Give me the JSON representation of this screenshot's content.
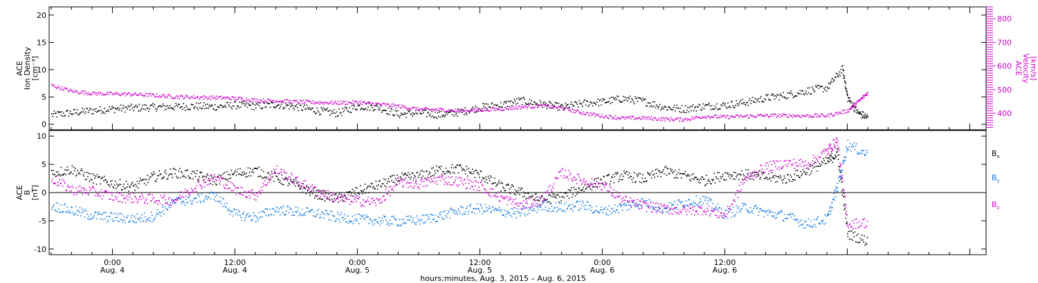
{
  "chart_data": [
    {
      "type": "scatter",
      "panel": "top",
      "ylabel_left": [
        "ACE",
        "Ion Density",
        "[cm⁻³]"
      ],
      "ylabel_right": [
        "ACE",
        "Velocity",
        "[km/s]"
      ],
      "yticks_left": [
        "0",
        "5",
        "10",
        "15",
        "20"
      ],
      "yticks_right": [
        "400",
        "500",
        "600",
        "700",
        "800"
      ],
      "ylim_left": [
        -1,
        21.5
      ],
      "ylim_right": [
        330,
        850
      ],
      "x_hours_range": [
        -6.2,
        85.6
      ],
      "series": [
        {
          "name": "density",
          "color": "#000000",
          "points": [
            [
              -6,
              1.8
            ],
            [
              -4,
              2.2
            ],
            [
              -2,
              2.6
            ],
            [
              0,
              2.9
            ],
            [
              2,
              3.1
            ],
            [
              4,
              3.2
            ],
            [
              6,
              3.3
            ],
            [
              8,
              3.4
            ],
            [
              10,
              3.3
            ],
            [
              12,
              3.6
            ],
            [
              14,
              3.4
            ],
            [
              16,
              3.7
            ],
            [
              18,
              3.3
            ],
            [
              20,
              2.6
            ],
            [
              22,
              2.1
            ],
            [
              24,
              3.4
            ],
            [
              26,
              3.2
            ],
            [
              28,
              1.9
            ],
            [
              30,
              2.2
            ],
            [
              32,
              1.8
            ],
            [
              34,
              2.3
            ],
            [
              36,
              3.2
            ],
            [
              38,
              3.6
            ],
            [
              40,
              4.4
            ],
            [
              42,
              3.8
            ],
            [
              44,
              3.2
            ],
            [
              46,
              3.9
            ],
            [
              48,
              4.2
            ],
            [
              50,
              4.8
            ],
            [
              52,
              4.3
            ],
            [
              54,
              3.2
            ],
            [
              56,
              2.9
            ],
            [
              58,
              3.4
            ],
            [
              60,
              3.6
            ],
            [
              62,
              4.1
            ],
            [
              64,
              4.9
            ],
            [
              66,
              5.4
            ],
            [
              68,
              6.2
            ],
            [
              70,
              6.8
            ],
            [
              71.5,
              10.2
            ],
            [
              72,
              4.9
            ],
            [
              73,
              2.2
            ],
            [
              74,
              1.3
            ]
          ]
        },
        {
          "name": "velocity",
          "color": "#cc00cc",
          "points": [
            [
              -6,
              520
            ],
            [
              -4,
              495
            ],
            [
              -2,
              486
            ],
            [
              0,
              484
            ],
            [
              2,
              482
            ],
            [
              4,
              478
            ],
            [
              6,
              472
            ],
            [
              8,
              470
            ],
            [
              10,
              468
            ],
            [
              12,
              465
            ],
            [
              14,
              457
            ],
            [
              16,
              455
            ],
            [
              18,
              450
            ],
            [
              20,
              448
            ],
            [
              22,
              446
            ],
            [
              24,
              448
            ],
            [
              26,
              440
            ],
            [
              28,
              432
            ],
            [
              30,
              418
            ],
            [
              32,
              417
            ],
            [
              34,
              412
            ],
            [
              36,
              416
            ],
            [
              38,
              420
            ],
            [
              40,
              428
            ],
            [
              42,
              434
            ],
            [
              44,
              424
            ],
            [
              46,
              404
            ],
            [
              48,
              390
            ],
            [
              50,
              381
            ],
            [
              52,
              382
            ],
            [
              54,
              377
            ],
            [
              56,
              376
            ],
            [
              58,
              389
            ],
            [
              60,
              386
            ],
            [
              62,
              389
            ],
            [
              64,
              392
            ],
            [
              66,
              392
            ],
            [
              68,
              391
            ],
            [
              70,
              392
            ],
            [
              72,
              412
            ],
            [
              73,
              450
            ],
            [
              74,
              490
            ]
          ]
        }
      ]
    },
    {
      "type": "scatter",
      "panel": "bottom",
      "ylabel_left": [
        "ACE",
        "B",
        "[nT]"
      ],
      "yticks_left": [
        "-10",
        "-5",
        "0",
        "5",
        "10"
      ],
      "ylim_left": [
        -11,
        11
      ],
      "x_hours_range": [
        -6.2,
        85.6
      ],
      "legend": [
        "B",
        "B",
        "B"
      ],
      "legend_subscripts": [
        "x",
        "y",
        "z"
      ],
      "series": [
        {
          "name": "Bx",
          "color": "#000000",
          "points": [
            [
              -6,
              3.5
            ],
            [
              -4,
              4.2
            ],
            [
              -2,
              2.6
            ],
            [
              0,
              1.7
            ],
            [
              2,
              1.1
            ],
            [
              4,
              2.9
            ],
            [
              6,
              3.6
            ],
            [
              8,
              3.2
            ],
            [
              10,
              2.2
            ],
            [
              12,
              3.5
            ],
            [
              14,
              3.9
            ],
            [
              16,
              2.7
            ],
            [
              18,
              1.4
            ],
            [
              20,
              -0.2
            ],
            [
              22,
              -1.0
            ],
            [
              24,
              0.3
            ],
            [
              26,
              1.4
            ],
            [
              28,
              2.6
            ],
            [
              30,
              3.0
            ],
            [
              32,
              4.1
            ],
            [
              34,
              4.3
            ],
            [
              36,
              3.2
            ],
            [
              38,
              1.2
            ],
            [
              40,
              0.1
            ],
            [
              42,
              -1.3
            ],
            [
              44,
              -0.6
            ],
            [
              46,
              0.8
            ],
            [
              48,
              2.2
            ],
            [
              50,
              3.1
            ],
            [
              52,
              2.5
            ],
            [
              54,
              3.9
            ],
            [
              56,
              3.1
            ],
            [
              58,
              2.2
            ],
            [
              60,
              3.2
            ],
            [
              62,
              3.3
            ],
            [
              64,
              2.8
            ],
            [
              66,
              2.5
            ],
            [
              68,
              3.9
            ],
            [
              70,
              5.6
            ],
            [
              71,
              7.1
            ],
            [
              72,
              -7.2
            ],
            [
              74,
              -8.6
            ]
          ]
        },
        {
          "name": "By",
          "color": "#1177dd",
          "points": [
            [
              -6,
              -2.2
            ],
            [
              -4,
              -3.1
            ],
            [
              -2,
              -4.0
            ],
            [
              0,
              -4.3
            ],
            [
              2,
              -4.6
            ],
            [
              4,
              -4.1
            ],
            [
              6,
              -1.6
            ],
            [
              8,
              -1.1
            ],
            [
              10,
              -0.4
            ],
            [
              12,
              -3.8
            ],
            [
              14,
              -4.3
            ],
            [
              16,
              -2.9
            ],
            [
              18,
              -3.3
            ],
            [
              20,
              -3.6
            ],
            [
              22,
              -4.3
            ],
            [
              24,
              -4.6
            ],
            [
              26,
              -4.9
            ],
            [
              28,
              -5.0
            ],
            [
              30,
              -4.8
            ],
            [
              32,
              -4.1
            ],
            [
              34,
              -3.1
            ],
            [
              36,
              -2.7
            ],
            [
              38,
              -3.3
            ],
            [
              40,
              -3.6
            ],
            [
              42,
              -2.3
            ],
            [
              44,
              -2.6
            ],
            [
              46,
              -2.1
            ],
            [
              48,
              -3.3
            ],
            [
              50,
              -2.4
            ],
            [
              52,
              -1.6
            ],
            [
              54,
              -2.8
            ],
            [
              56,
              -1.6
            ],
            [
              58,
              -1.2
            ],
            [
              60,
              -3.8
            ],
            [
              62,
              -2.5
            ],
            [
              64,
              -3.5
            ],
            [
              66,
              -4.1
            ],
            [
              68,
              -5.5
            ],
            [
              70,
              -4.6
            ],
            [
              71,
              1.2
            ],
            [
              72,
              8.6
            ],
            [
              74,
              6.8
            ]
          ]
        },
        {
          "name": "Bz",
          "color": "#cc00cc",
          "points": [
            [
              -6,
              2.6
            ],
            [
              -4,
              0.6
            ],
            [
              -2,
              0.3
            ],
            [
              0,
              -0.6
            ],
            [
              2,
              -0.9
            ],
            [
              4,
              -1.1
            ],
            [
              6,
              -1.3
            ],
            [
              8,
              1.1
            ],
            [
              10,
              2.8
            ],
            [
              12,
              0.6
            ],
            [
              14,
              -0.4
            ],
            [
              16,
              4.1
            ],
            [
              18,
              2.1
            ],
            [
              20,
              0.3
            ],
            [
              22,
              -0.9
            ],
            [
              24,
              -1.4
            ],
            [
              26,
              -1.6
            ],
            [
              28,
              1.9
            ],
            [
              30,
              1.6
            ],
            [
              32,
              2.5
            ],
            [
              34,
              2.0
            ],
            [
              36,
              1.2
            ],
            [
              38,
              -0.8
            ],
            [
              40,
              -2.2
            ],
            [
              42,
              -1.3
            ],
            [
              44,
              3.6
            ],
            [
              46,
              2.2
            ],
            [
              48,
              1.4
            ],
            [
              50,
              -1.3
            ],
            [
              52,
              -2.3
            ],
            [
              54,
              -2.8
            ],
            [
              56,
              -3.1
            ],
            [
              58,
              -2.9
            ],
            [
              60,
              -4.0
            ],
            [
              62,
              2.6
            ],
            [
              64,
              4.6
            ],
            [
              66,
              5.3
            ],
            [
              68,
              5.1
            ],
            [
              70,
              7.5
            ],
            [
              71,
              9.3
            ],
            [
              72,
              -5.5
            ],
            [
              74,
              -5.2
            ]
          ]
        }
      ]
    }
  ],
  "x_axis": {
    "ticks": [
      {
        "hour": 0,
        "time": "0:00",
        "date": "Aug. 4"
      },
      {
        "hour": 12,
        "time": "12:00",
        "date": "Aug. 4"
      },
      {
        "hour": 24,
        "time": "0:00",
        "date": "Aug. 5"
      },
      {
        "hour": 36,
        "time": "12:00",
        "date": "Aug. 5"
      },
      {
        "hour": 48,
        "time": "0:00",
        "date": "Aug. 6"
      },
      {
        "hour": 60,
        "time": "12:00",
        "date": "Aug. 6"
      }
    ],
    "xlabel": "hours:minutes, Aug.  3, 2015 – Aug.  6, 2015"
  }
}
